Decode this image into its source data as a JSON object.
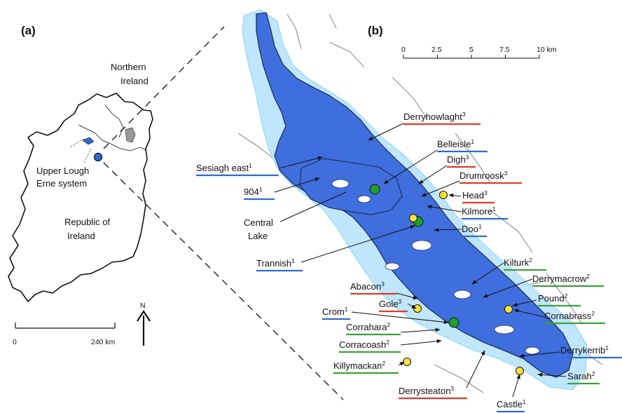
{
  "panels": {
    "a": "(a)",
    "b": "(b)"
  },
  "overview": {
    "northern_ireland": [
      "Northern",
      "Ireland"
    ],
    "republic": [
      "Republic of",
      "Ireland"
    ],
    "system": [
      "Upper Lough",
      "Erne system"
    ],
    "scale_ticks": [
      "0",
      "240 km"
    ],
    "north": "N"
  },
  "detail": {
    "scale_ticks": [
      "0",
      "2.5",
      "5",
      "7.5",
      "10 km"
    ],
    "central_lake": [
      "Central",
      "Lake"
    ]
  },
  "category_colors": {
    "1": "#2e6bd1",
    "2": "#3aa13a",
    "3": "#e23a2a"
  },
  "marker_colors": {
    "green": "#1f9d2f",
    "yellow": "#ffe23a"
  },
  "lakes": [
    {
      "name": "Sesiagh east",
      "sup": "1"
    },
    {
      "name": "904",
      "sup": "1"
    },
    {
      "name": "Trannish",
      "sup": "1"
    },
    {
      "name": "Abacon",
      "sup": "3"
    },
    {
      "name": "Gole",
      "sup": "3"
    },
    {
      "name": "Crom",
      "sup": "1"
    },
    {
      "name": "Corrahara",
      "sup": "2"
    },
    {
      "name": "Corracoash",
      "sup": "2"
    },
    {
      "name": "Killymackan",
      "sup": "2"
    },
    {
      "name": "Derrysteaton",
      "sup": "3"
    },
    {
      "name": "Castle",
      "sup": "1"
    },
    {
      "name": "Derryhowlaght",
      "sup": "3"
    },
    {
      "name": "Belleisle",
      "sup": "1"
    },
    {
      "name": "Digh",
      "sup": "3"
    },
    {
      "name": "Drumroosk",
      "sup": "3"
    },
    {
      "name": "Head",
      "sup": "3"
    },
    {
      "name": "Kilmore",
      "sup": "1"
    },
    {
      "name": "Doo",
      "sup": "1"
    },
    {
      "name": "Kilturk",
      "sup": "2"
    },
    {
      "name": "Derrymacrow",
      "sup": "2"
    },
    {
      "name": "Pound",
      "sup": "2"
    },
    {
      "name": "Cornabrass",
      "sup": "2"
    },
    {
      "name": "Derrykerrib",
      "sup": "1"
    },
    {
      "name": "Sarah",
      "sup": "2"
    }
  ]
}
